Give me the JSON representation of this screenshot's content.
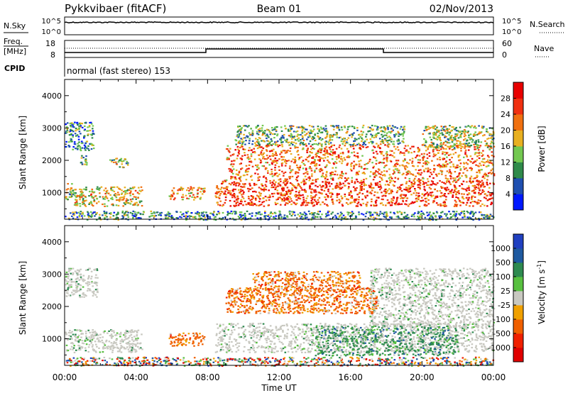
{
  "header": {
    "radar": "Pykkvibaer (fitACF)",
    "beam": "Beam 01",
    "date": "02/Nov/2013"
  },
  "ops_panels": {
    "nsky_label": "N.Sky",
    "nsearch_label": "N.Search",
    "nsky_ticks": [
      "10^5",
      "10^0"
    ],
    "freq_label_1": "Freq.",
    "freq_label_2": "[MHz]",
    "freq_ticks": [
      "18",
      "8"
    ],
    "nave_label": "Nave",
    "nave_ticks": [
      "60",
      "0"
    ],
    "cpid_label": "CPID",
    "cpid_text": "normal (fast stereo) 153"
  },
  "chart_data": [
    {
      "type": "heatmap",
      "parameter": "power",
      "title": "",
      "xlabel": "",
      "ylabel": "Slant Range [km]",
      "xlim": [
        "00:00",
        "24:00"
      ],
      "ylim": [
        180,
        4500
      ],
      "yticks": [
        1000,
        2000,
        3000,
        4000
      ],
      "colorbar": {
        "label": "Power [dB]",
        "ticks": [
          4,
          8,
          12,
          16,
          20,
          24,
          28
        ],
        "range": [
          0,
          32
        ],
        "colors": [
          "#0018ff",
          "#1f4fb0",
          "#2f8a4a",
          "#73c850",
          "#e8b020",
          "#f07010",
          "#f03010",
          "#e80000"
        ]
      },
      "regions": [
        {
          "t": [
            0.0,
            1.6
          ],
          "r": [
            2300,
            3200
          ],
          "level": 0.3
        },
        {
          "t": [
            0.0,
            0.6
          ],
          "r": [
            800,
            1300
          ],
          "level": 0.45
        },
        {
          "t": [
            0.5,
            4.3
          ],
          "r": [
            600,
            1200
          ],
          "level": 0.55
        },
        {
          "t": [
            0.8,
            1.2
          ],
          "r": [
            1800,
            2200
          ],
          "level": 0.35
        },
        {
          "t": [
            2.5,
            3.5
          ],
          "r": [
            1800,
            2100
          ],
          "level": 0.4
        },
        {
          "t": [
            5.8,
            7.8
          ],
          "r": [
            800,
            1200
          ],
          "level": 0.6
        },
        {
          "t": [
            8.4,
            24.0
          ],
          "r": [
            600,
            1400
          ],
          "level": 0.8
        },
        {
          "t": [
            9.0,
            24.0
          ],
          "r": [
            1400,
            2500
          ],
          "level": 0.7
        },
        {
          "t": [
            9.5,
            19.0
          ],
          "r": [
            2500,
            3100
          ],
          "level": 0.4
        },
        {
          "t": [
            20.0,
            24.0
          ],
          "r": [
            2400,
            3100
          ],
          "level": 0.45
        },
        {
          "t": [
            0.0,
            24.0
          ],
          "r": [
            180,
            450
          ],
          "level": 0.3
        }
      ]
    },
    {
      "type": "heatmap",
      "parameter": "velocity",
      "title": "",
      "xlabel": "Time UT",
      "ylabel": "Slant Range [km]",
      "xlim": [
        "00:00",
        "24:00"
      ],
      "ylim": [
        180,
        4500
      ],
      "xticks": [
        "00:00",
        "04:00",
        "08:00",
        "12:00",
        "16:00",
        "20:00",
        "00:00"
      ],
      "yticks": [
        1000,
        2000,
        3000,
        4000
      ],
      "colorbar": {
        "label": "Velocity [m s",
        "label_superscript": "-1",
        "label_end": "]",
        "ticks": [
          1000,
          500,
          100,
          25,
          -25,
          -100,
          -500,
          -1000
        ],
        "colors": [
          "#2040c0",
          "#1f5aa0",
          "#2e8a50",
          "#58c040",
          "#c8c8c0",
          "#f0a000",
          "#f06000",
          "#f02000",
          "#e00000"
        ]
      },
      "regions": [
        {
          "t": [
            0.0,
            1.8
          ],
          "r": [
            2300,
            3200
          ],
          "v": "ground"
        },
        {
          "t": [
            0.0,
            4.3
          ],
          "r": [
            600,
            1300
          ],
          "v": "ground"
        },
        {
          "t": [
            5.8,
            7.8
          ],
          "r": [
            800,
            1200
          ],
          "v": "away"
        },
        {
          "t": [
            8.4,
            24.0
          ],
          "r": [
            600,
            1500
          ],
          "v": "ground"
        },
        {
          "t": [
            9.0,
            17.5
          ],
          "r": [
            1800,
            2600
          ],
          "v": "away"
        },
        {
          "t": [
            10.5,
            16.5
          ],
          "r": [
            2500,
            3100
          ],
          "v": "away"
        },
        {
          "t": [
            14.0,
            22.0
          ],
          "r": [
            500,
            1400
          ],
          "v": "toward"
        },
        {
          "t": [
            17.0,
            24.0
          ],
          "r": [
            1400,
            3200
          ],
          "v": "ground"
        },
        {
          "t": [
            0.0,
            24.0
          ],
          "r": [
            180,
            450
          ],
          "v": "mixed"
        }
      ]
    }
  ]
}
